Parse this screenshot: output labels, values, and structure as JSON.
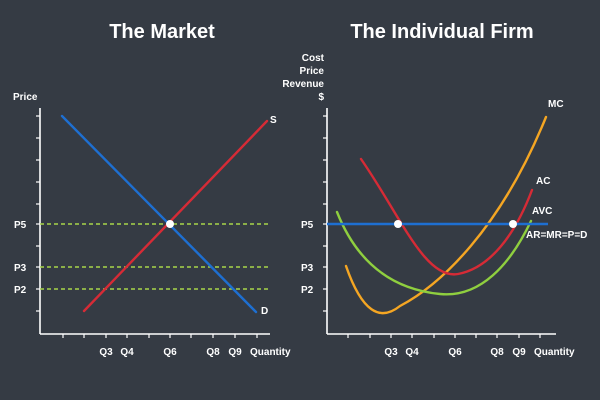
{
  "colors": {
    "background": "#353b44",
    "axis": "#ffffff",
    "supply": "#d62b36",
    "demand": "#1e6fd1",
    "price_line": "#1e6fd1",
    "guide": "#a8d64a",
    "mc": "#f5a623",
    "ac": "#d62b36",
    "avc": "#8fcf3f",
    "point": "#ffffff"
  },
  "market": {
    "title": "The Market",
    "y_axis_label": "Price",
    "x_axis_label": "Quantity",
    "y_ticks": [
      "P5",
      "P3",
      "P2"
    ],
    "x_ticks": [
      "Q3",
      "Q4",
      "Q6",
      "Q8",
      "Q9"
    ],
    "supply_label": "S",
    "demand_label": "D"
  },
  "firm": {
    "title": "The Individual Firm",
    "y_axis_label_lines": [
      "Cost",
      "Price",
      "Revenue",
      "$"
    ],
    "x_axis_label": "Quantity",
    "y_ticks": [
      "P5",
      "P3",
      "P2"
    ],
    "x_ticks": [
      "Q3",
      "Q4",
      "Q6",
      "Q8",
      "Q9"
    ],
    "mc_label": "MC",
    "ac_label": "AC",
    "avc_label": "AVC",
    "price_line_label": "AR=MR=P=D"
  }
}
